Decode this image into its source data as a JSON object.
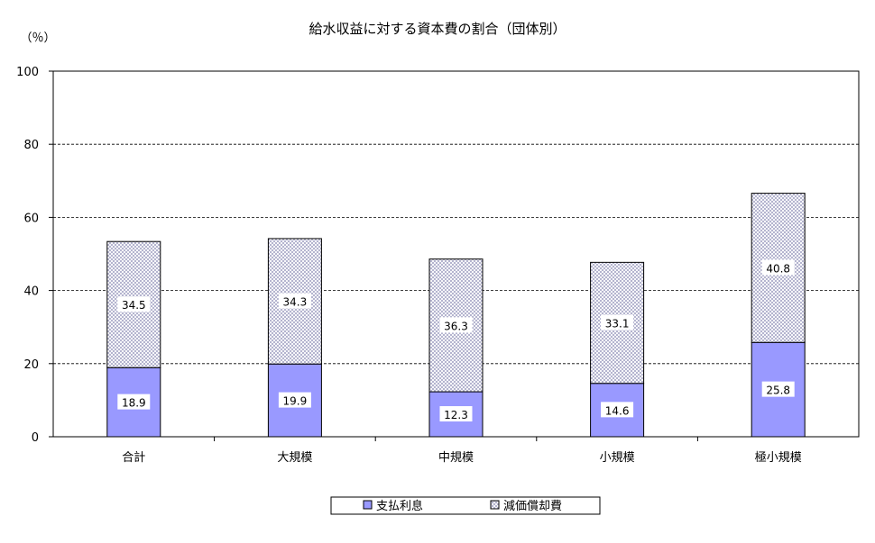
{
  "chart_data": {
    "type": "bar",
    "stacked": true,
    "title": "給水収益に対する資本費の割合（団体別）",
    "ylabel": "（％）",
    "xlabel": "",
    "ylim": [
      0,
      100
    ],
    "yticks": [
      0,
      20,
      40,
      60,
      80,
      100
    ],
    "grid": true,
    "legend_position": "bottom",
    "categories": [
      "合計",
      "大規模",
      "中規模",
      "小規模",
      "極小規模"
    ],
    "series": [
      {
        "name": "支払利息",
        "values": [
          18.9,
          19.9,
          12.3,
          14.6,
          25.8
        ],
        "color": "#9999ff",
        "pattern": "solid"
      },
      {
        "name": "減価償却費",
        "values": [
          34.5,
          34.3,
          36.3,
          33.1,
          40.8
        ],
        "color": "#c8c8e8",
        "pattern": "crosshatch"
      }
    ],
    "data_labels": true
  }
}
